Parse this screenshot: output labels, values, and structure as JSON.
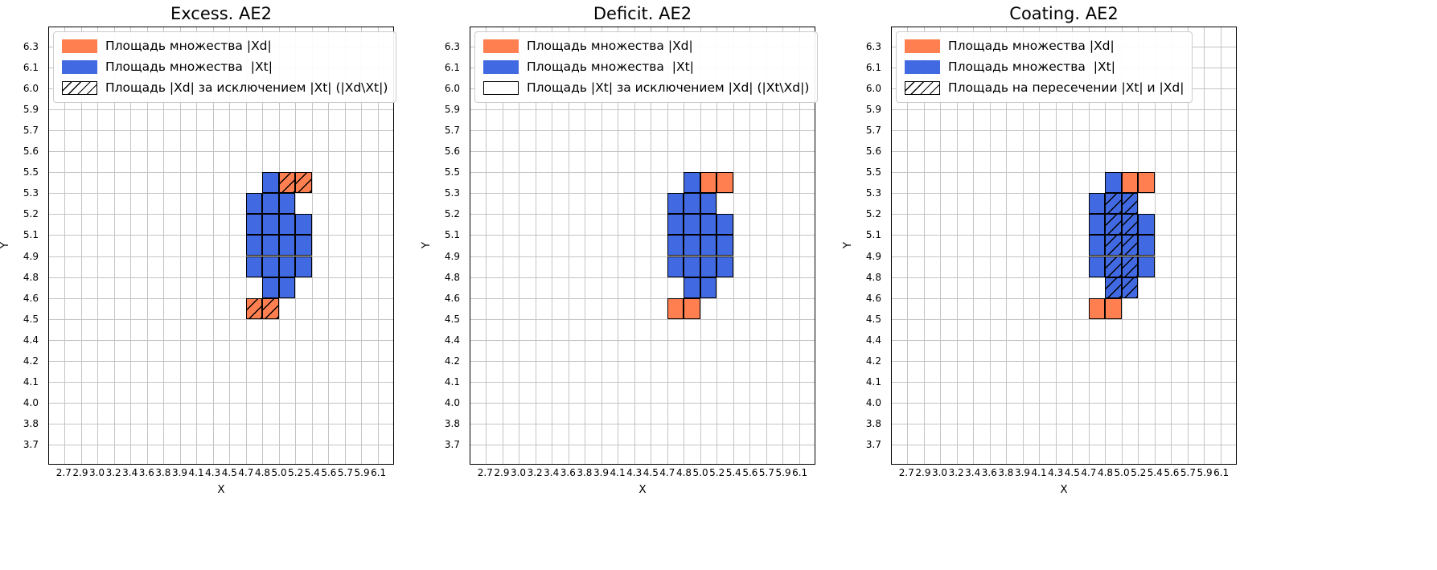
{
  "colors": {
    "xd_fill": "#ff7f50",
    "xt_fill": "#4169e1",
    "cell_edge": "#000000",
    "grid_line": "#c4c4c4",
    "axis_spine": "#000000",
    "hatch_line": "#000000",
    "legend_border": "#cccccc",
    "legend_background": "#ffffff",
    "text": "#000000"
  },
  "axes": {
    "x_label": "X",
    "y_label": "Y",
    "grid": true,
    "x_ticks": [
      "2.7",
      "2.9",
      "3.0",
      "3.2",
      "3.4",
      "3.6",
      "3.8",
      "3.9",
      "4.1",
      "4.3",
      "4.5",
      "4.7",
      "4.8",
      "5.0",
      "5.2",
      "5.4",
      "5.6",
      "5.7",
      "5.9",
      "6.1"
    ],
    "y_ticks_bottom_up": [
      "3.7",
      "3.8",
      "4.0",
      "4.1",
      "4.2",
      "4.4",
      "4.5",
      "4.6",
      "4.8",
      "4.9",
      "5.1",
      "5.2",
      "5.3",
      "5.5",
      "5.6",
      "5.7",
      "5.9",
      "6.0",
      "6.1",
      "6.3"
    ]
  },
  "chart_data": [
    {
      "type": "heatmap",
      "title": "Excess. AE2",
      "legend_position": "upper left",
      "legend": [
        {
          "label": "Площадь множества |Xd|",
          "swatch": "xd"
        },
        {
          "label": "Площадь множества  |Xt|",
          "swatch": "xt"
        },
        {
          "label": "Площадь |Xd| за исключением |Xt| (|Xd\\Xt|)",
          "swatch": "hatch"
        }
      ],
      "cells": [
        {
          "col": 12,
          "row": 12,
          "fill": "xt",
          "hatch": false
        },
        {
          "col": 13,
          "row": 12,
          "fill": "xd",
          "hatch": true
        },
        {
          "col": 14,
          "row": 12,
          "fill": "xd",
          "hatch": true
        },
        {
          "col": 11,
          "row": 11,
          "fill": "xt",
          "hatch": false
        },
        {
          "col": 12,
          "row": 11,
          "fill": "xt",
          "hatch": false
        },
        {
          "col": 13,
          "row": 11,
          "fill": "xt",
          "hatch": false
        },
        {
          "col": 11,
          "row": 10,
          "fill": "xt",
          "hatch": false
        },
        {
          "col": 12,
          "row": 10,
          "fill": "xt",
          "hatch": false
        },
        {
          "col": 13,
          "row": 10,
          "fill": "xt",
          "hatch": false
        },
        {
          "col": 14,
          "row": 10,
          "fill": "xt",
          "hatch": false
        },
        {
          "col": 11,
          "row": 9,
          "fill": "xt",
          "hatch": false
        },
        {
          "col": 12,
          "row": 9,
          "fill": "xt",
          "hatch": false
        },
        {
          "col": 13,
          "row": 9,
          "fill": "xt",
          "hatch": false
        },
        {
          "col": 14,
          "row": 9,
          "fill": "xt",
          "hatch": false
        },
        {
          "col": 11,
          "row": 8,
          "fill": "xt",
          "hatch": false
        },
        {
          "col": 12,
          "row": 8,
          "fill": "xt",
          "hatch": false
        },
        {
          "col": 13,
          "row": 8,
          "fill": "xt",
          "hatch": false
        },
        {
          "col": 14,
          "row": 8,
          "fill": "xt",
          "hatch": false
        },
        {
          "col": 12,
          "row": 7,
          "fill": "xt",
          "hatch": false
        },
        {
          "col": 13,
          "row": 7,
          "fill": "xt",
          "hatch": false
        },
        {
          "col": 11,
          "row": 6,
          "fill": "xd",
          "hatch": true
        },
        {
          "col": 12,
          "row": 6,
          "fill": "xd",
          "hatch": true
        }
      ]
    },
    {
      "type": "heatmap",
      "title": "Deficit. AE2",
      "legend_position": "upper left",
      "legend": [
        {
          "label": "Площадь множества |Xd|",
          "swatch": "xd"
        },
        {
          "label": "Площадь множества  |Xt|",
          "swatch": "xt"
        },
        {
          "label": "Площадь |Xt| за исключением |Xd| (|Xt\\Xd|)",
          "swatch": "outline"
        }
      ],
      "cells": [
        {
          "col": 12,
          "row": 12,
          "fill": "xt",
          "hatch": false
        },
        {
          "col": 13,
          "row": 12,
          "fill": "xd",
          "hatch": false
        },
        {
          "col": 14,
          "row": 12,
          "fill": "xd",
          "hatch": false
        },
        {
          "col": 11,
          "row": 11,
          "fill": "xt",
          "hatch": false
        },
        {
          "col": 12,
          "row": 11,
          "fill": "xt",
          "hatch": false
        },
        {
          "col": 13,
          "row": 11,
          "fill": "xt",
          "hatch": false
        },
        {
          "col": 11,
          "row": 10,
          "fill": "xt",
          "hatch": false
        },
        {
          "col": 12,
          "row": 10,
          "fill": "xt",
          "hatch": false
        },
        {
          "col": 13,
          "row": 10,
          "fill": "xt",
          "hatch": false
        },
        {
          "col": 14,
          "row": 10,
          "fill": "xt",
          "hatch": false
        },
        {
          "col": 11,
          "row": 9,
          "fill": "xt",
          "hatch": false
        },
        {
          "col": 12,
          "row": 9,
          "fill": "xt",
          "hatch": false
        },
        {
          "col": 13,
          "row": 9,
          "fill": "xt",
          "hatch": false
        },
        {
          "col": 14,
          "row": 9,
          "fill": "xt",
          "hatch": false
        },
        {
          "col": 11,
          "row": 8,
          "fill": "xt",
          "hatch": false
        },
        {
          "col": 12,
          "row": 8,
          "fill": "xt",
          "hatch": false
        },
        {
          "col": 13,
          "row": 8,
          "fill": "xt",
          "hatch": false
        },
        {
          "col": 14,
          "row": 8,
          "fill": "xt",
          "hatch": false
        },
        {
          "col": 12,
          "row": 7,
          "fill": "xt",
          "hatch": false
        },
        {
          "col": 13,
          "row": 7,
          "fill": "xt",
          "hatch": false
        },
        {
          "col": 11,
          "row": 6,
          "fill": "xd",
          "hatch": false
        },
        {
          "col": 12,
          "row": 6,
          "fill": "xd",
          "hatch": false
        }
      ]
    },
    {
      "type": "heatmap",
      "title": "Coating. AE2",
      "legend_position": "upper left",
      "legend": [
        {
          "label": "Площадь множества |Xd|",
          "swatch": "xd"
        },
        {
          "label": "Площадь множества  |Xt|",
          "swatch": "xt"
        },
        {
          "label": "Площадь на пересечении |Xt| и |Xd|",
          "swatch": "hatch"
        }
      ],
      "cells": [
        {
          "col": 12,
          "row": 12,
          "fill": "xt",
          "hatch": false
        },
        {
          "col": 13,
          "row": 12,
          "fill": "xd",
          "hatch": false
        },
        {
          "col": 14,
          "row": 12,
          "fill": "xd",
          "hatch": false
        },
        {
          "col": 11,
          "row": 11,
          "fill": "xt",
          "hatch": false
        },
        {
          "col": 12,
          "row": 11,
          "fill": "xt",
          "hatch": true
        },
        {
          "col": 13,
          "row": 11,
          "fill": "xt",
          "hatch": true
        },
        {
          "col": 11,
          "row": 10,
          "fill": "xt",
          "hatch": false
        },
        {
          "col": 12,
          "row": 10,
          "fill": "xt",
          "hatch": true
        },
        {
          "col": 13,
          "row": 10,
          "fill": "xt",
          "hatch": true
        },
        {
          "col": 14,
          "row": 10,
          "fill": "xt",
          "hatch": false
        },
        {
          "col": 11,
          "row": 9,
          "fill": "xt",
          "hatch": false
        },
        {
          "col": 12,
          "row": 9,
          "fill": "xt",
          "hatch": true
        },
        {
          "col": 13,
          "row": 9,
          "fill": "xt",
          "hatch": true
        },
        {
          "col": 14,
          "row": 9,
          "fill": "xt",
          "hatch": false
        },
        {
          "col": 11,
          "row": 8,
          "fill": "xt",
          "hatch": false
        },
        {
          "col": 12,
          "row": 8,
          "fill": "xt",
          "hatch": true
        },
        {
          "col": 13,
          "row": 8,
          "fill": "xt",
          "hatch": true
        },
        {
          "col": 14,
          "row": 8,
          "fill": "xt",
          "hatch": false
        },
        {
          "col": 12,
          "row": 7,
          "fill": "xt",
          "hatch": true
        },
        {
          "col": 13,
          "row": 7,
          "fill": "xt",
          "hatch": true
        },
        {
          "col": 11,
          "row": 6,
          "fill": "xd",
          "hatch": false
        },
        {
          "col": 12,
          "row": 6,
          "fill": "xd",
          "hatch": false
        }
      ]
    }
  ]
}
